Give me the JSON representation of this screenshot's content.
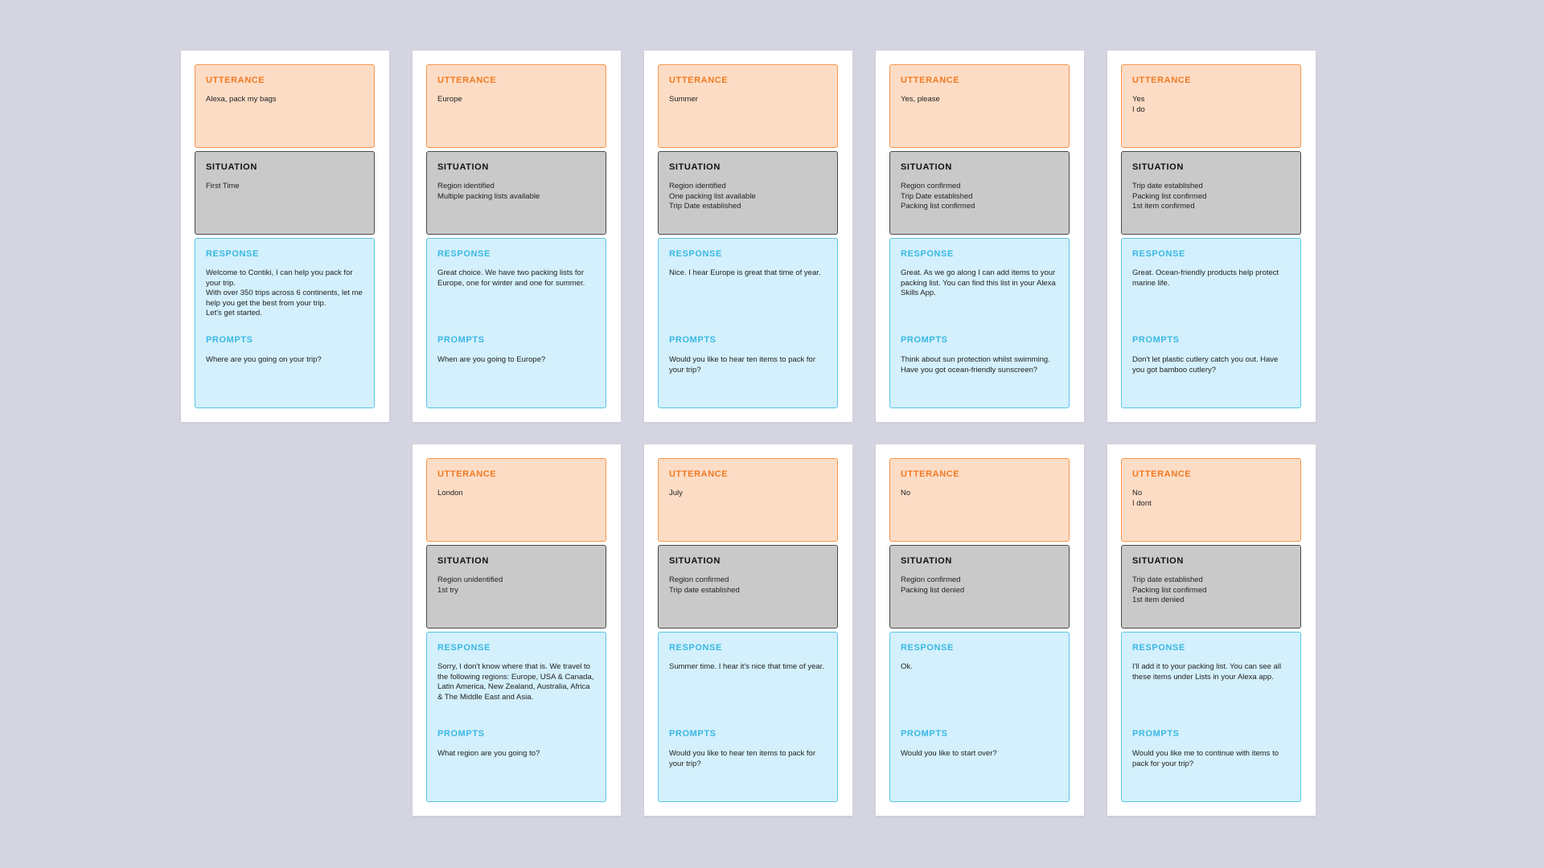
{
  "headers": {
    "utterance": "UTTERANCE",
    "situation": "SITUATION",
    "response": "RESPONSE",
    "prompts": "PROMPTS"
  },
  "cards": [
    {
      "utterance": "Alexa, pack my bags",
      "situation": "First Time",
      "response": "Welcome to Contiki, I can help you pack for your trip.\nWith over 350 trips across 6 continents, let me help you get the best from your trip.\nLet's get started.",
      "prompts": "Where are you going on your trip?"
    },
    {
      "utterance": "Europe",
      "situation": "Region identified\nMultiple packing lists available",
      "response": "Great choice. We have two packing lists for Europe, one for winter and one for summer.",
      "prompts": "When are you going to Europe?"
    },
    {
      "utterance": "Summer",
      "situation": "Region identified\nOne packing list available\nTrip Date established",
      "response": "Nice. I hear Europe is great that time of year.",
      "prompts": "Would you like to hear ten items to pack for your trip?"
    },
    {
      "utterance": "Yes, please",
      "situation": "Region confirmed\nTrip Date established\nPacking list confirmed",
      "response": "Great. As we go along I can add items to your packing list. You can find this list in your Alexa Skills App.",
      "prompts": "Think about sun protection whilst swimming. Have you got ocean-friendly sunscreen?"
    },
    {
      "utterance": "Yes\nI do",
      "situation": "Trip date established\nPacking list confirmed\n1st item confirmed",
      "response": "Great. Ocean-friendly products help protect marine life.",
      "prompts": "Don't let plastic cutlery catch you out. Have you got bamboo cutlery?"
    },
    {
      "utterance": "London",
      "situation": "Region unidentified\n1st try",
      "response": "Sorry, I don't know where that is. We travel to the following regions: Europe, USA & Canada, Latin America, New Zealand, Australia, Africa & The Middle East and Asia.",
      "prompts": "What region are you going to?"
    },
    {
      "utterance": "July",
      "situation": "Region confirmed\nTrip date established",
      "response": "Summer time. I hear it's nice that time of year.",
      "prompts": "Would you like to hear ten items to pack for your trip?"
    },
    {
      "utterance": "No",
      "situation": "Region confirmed\nPacking list denied",
      "response": "Ok.",
      "prompts": "Would you like to start over?"
    },
    {
      "utterance": "No\nI dont",
      "situation": "Trip date established\nPacking list confirmed\n1st item denied",
      "response": "I'll add it to your packing list. You can see all these items under Lists in your Alexa app.",
      "prompts": "Would you like me to continue with items to pack for your trip?"
    }
  ]
}
